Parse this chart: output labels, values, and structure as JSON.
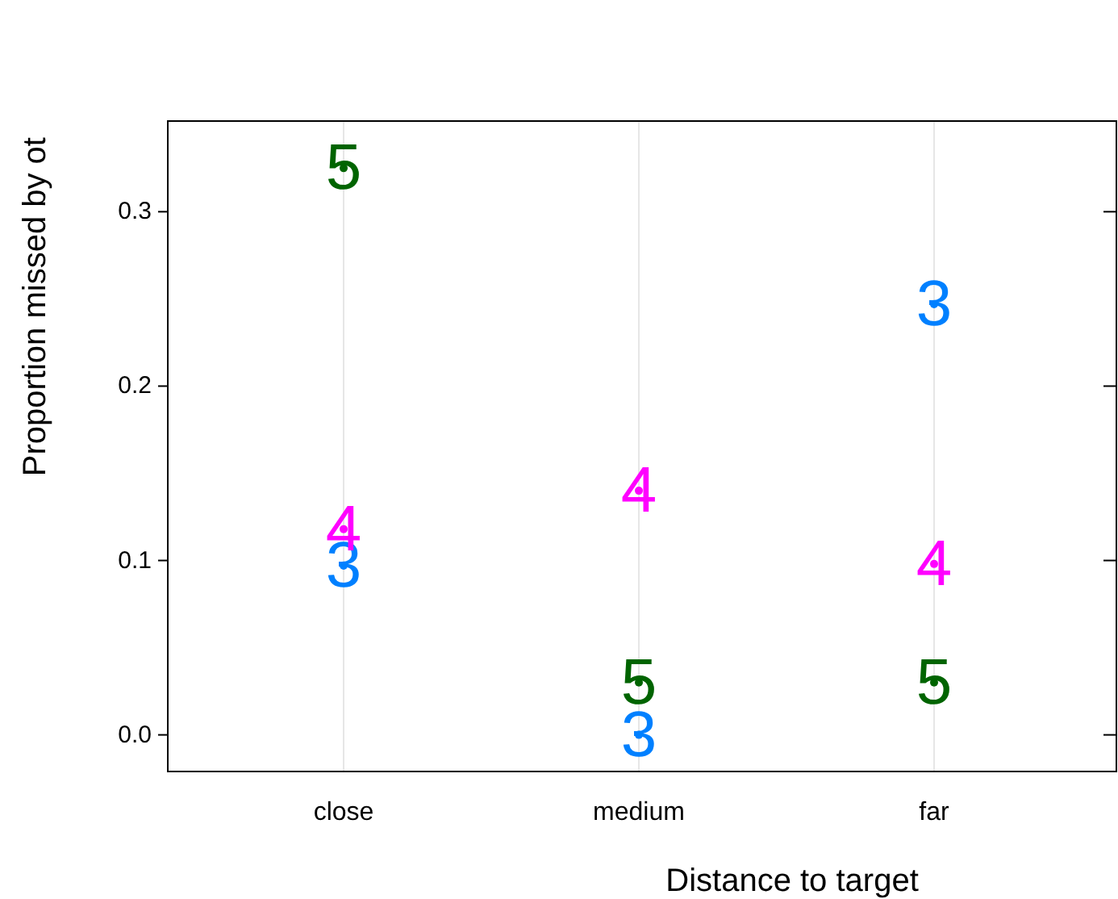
{
  "chart_data": {
    "type": "scatter",
    "xlabel": "Distance to target",
    "ylabel": "Proportion missed by ot",
    "categories": [
      "close",
      "medium",
      "far"
    ],
    "series": [
      {
        "name": "3",
        "color": "#0080ff",
        "values": [
          0.097,
          0.0,
          0.247
        ]
      },
      {
        "name": "4",
        "color": "#ff00ff",
        "values": [
          0.118,
          0.14,
          0.098
        ]
      },
      {
        "name": "5",
        "color": "#006400",
        "values": [
          0.325,
          0.03,
          0.03
        ]
      }
    ],
    "ylim": [
      -0.021,
      0.352
    ],
    "yticks": [
      {
        "value": 0,
        "label": "0.0"
      },
      0.1,
      0.2,
      0.3
    ],
    "grid": "x"
  }
}
